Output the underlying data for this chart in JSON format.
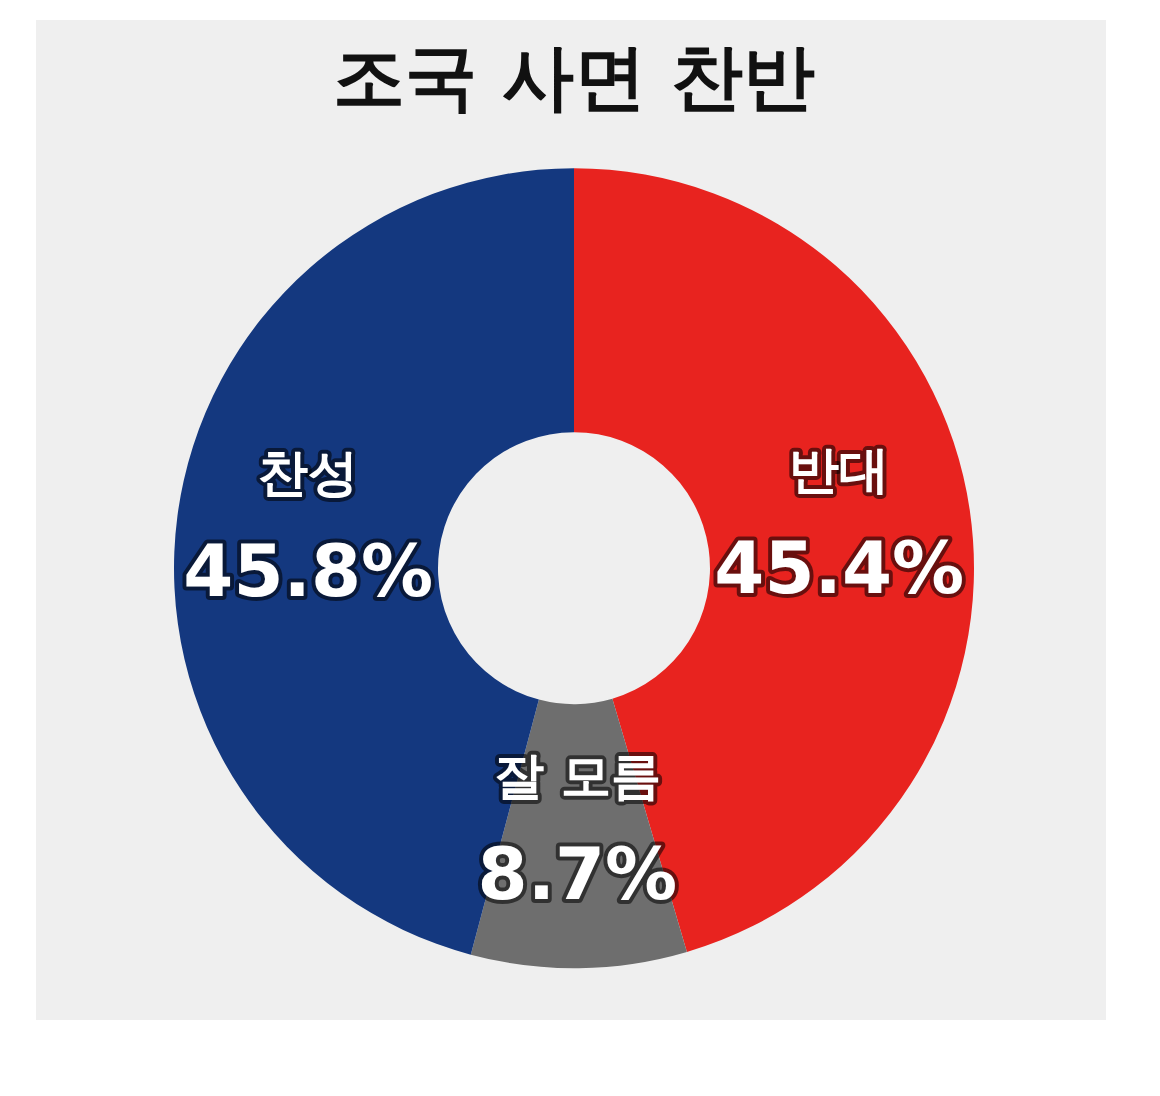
{
  "chart_data": {
    "type": "donut",
    "title": "조국 사면 찬반",
    "categories": [
      "반대",
      "잘 모름",
      "찬성"
    ],
    "values": [
      45.4,
      8.7,
      45.8
    ],
    "value_labels": [
      "45.4%",
      "8.7%",
      "45.8%"
    ],
    "colors": [
      "#e8231f",
      "#6e6e6e",
      "#14387f"
    ],
    "legend": false
  }
}
